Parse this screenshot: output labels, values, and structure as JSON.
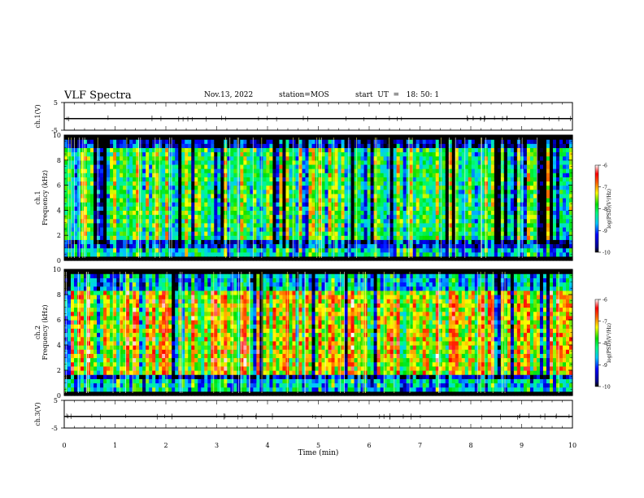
{
  "header": {
    "title": "VLF Spectra",
    "date": "Nov.13, 2022",
    "station": "station=MOS",
    "start": "start  UT  =   18: 50: 1"
  },
  "chart_data": [
    {
      "type": "line",
      "panel": "ch.1 waveform",
      "ylabel": "ch.1(V)",
      "ylim": [
        -5,
        5
      ],
      "yticks": [
        "5",
        "-5"
      ],
      "x": [
        0,
        10
      ],
      "y": [
        -0.8,
        -0.8
      ],
      "grid": false
    },
    {
      "type": "heatmap",
      "panel": "ch.1 spectrogram",
      "ylabel": "ch.1\nFrequency (kHz)",
      "ylim": [
        0,
        10
      ],
      "yticks": [
        "0",
        "2",
        "4",
        "6",
        "8",
        "10"
      ],
      "xlim": [
        0,
        10
      ],
      "colorbar": {
        "label": "log(PSD)(V²/Hz)",
        "range": [
          -10,
          -6
        ],
        "ticks": [
          "-6",
          "-7",
          "-8",
          "-9",
          "-10"
        ]
      },
      "bands": [
        {
          "f": [
            0,
            0.2
          ],
          "level": -10
        },
        {
          "f": [
            0.2,
            1.0
          ],
          "level": -8.4
        },
        {
          "f": [
            1.0,
            1.7
          ],
          "level": -9.2
        },
        {
          "f": [
            1.7,
            9.0
          ],
          "level": -8.0
        },
        {
          "f": [
            9.0,
            9.6
          ],
          "level": -9.4
        },
        {
          "f": [
            9.6,
            10
          ],
          "level": -10
        }
      ]
    },
    {
      "type": "heatmap",
      "panel": "ch.2 spectrogram",
      "ylabel": "ch.2\nFrequency (kHz)",
      "ylim": [
        0,
        10
      ],
      "yticks": [
        "0",
        "2",
        "4",
        "6",
        "8",
        "10"
      ],
      "xlim": [
        0,
        10
      ],
      "colorbar": {
        "label": "log(PSD)(V²/Hz)",
        "range": [
          -10,
          -6
        ],
        "ticks": [
          "-6",
          "-7",
          "-8",
          "-9",
          "-10"
        ]
      },
      "bands": [
        {
          "f": [
            0,
            0.2
          ],
          "level": -10
        },
        {
          "f": [
            0.2,
            1.2
          ],
          "level": -8.5
        },
        {
          "f": [
            1.2,
            1.8
          ],
          "level": -9.4
        },
        {
          "f": [
            1.8,
            8.5
          ],
          "level": -7.3
        },
        {
          "f": [
            8.5,
            9.6
          ],
          "level": -8.6
        },
        {
          "f": [
            9.6,
            10
          ],
          "level": -9.4
        }
      ]
    },
    {
      "type": "line",
      "panel": "ch.3 waveform",
      "ylabel": "ch.3(V)",
      "ylim": [
        -5,
        5
      ],
      "yticks": [
        "5",
        "-5"
      ],
      "x": [
        0,
        10
      ],
      "y": [
        -0.8,
        -0.8
      ],
      "xlabel": "Time (min)",
      "xticks": [
        "0",
        "1",
        "2",
        "3",
        "4",
        "5",
        "6",
        "7",
        "8",
        "9",
        "10"
      ],
      "xlim": [
        0,
        10
      ],
      "grid": false
    }
  ]
}
